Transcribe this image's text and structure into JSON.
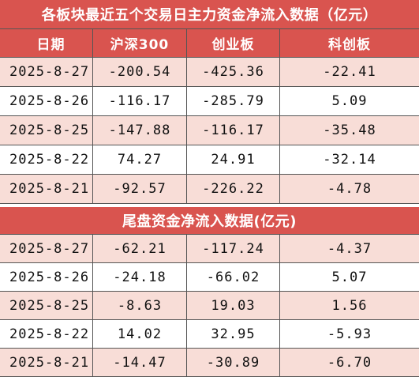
{
  "title": "各板块最近五个交易日主力资金净流入数据（亿元）",
  "header": [
    "日期",
    "沪深300",
    "创业板",
    "科创板"
  ],
  "rows": [
    [
      "2025-8-27",
      "-200.54",
      "-425.36",
      "-22.41"
    ],
    [
      "2025-8-26",
      "-116.17",
      "-285.79",
      "5.09"
    ],
    [
      "2025-8-25",
      "-147.88",
      "-116.17",
      "-35.48"
    ],
    [
      "2025-8-22",
      "74.27",
      "24.91",
      "-32.14"
    ],
    [
      "2025-8-21",
      "-92.57",
      "-226.22",
      "-4.78"
    ]
  ],
  "section2_title": "尾盘资金净流入数据(亿元)",
  "rows2": [
    [
      "2025-8-27",
      "-62.21",
      "-117.24",
      "-4.37"
    ],
    [
      "2025-8-26",
      "-24.18",
      "-66.02",
      "5.07"
    ],
    [
      "2025-8-25",
      "-8.63",
      "19.03",
      "1.56"
    ],
    [
      "2025-8-22",
      "14.02",
      "32.95",
      "-5.93"
    ],
    [
      "2025-8-21",
      "-14.47",
      "-30.89",
      "-6.70"
    ]
  ]
}
